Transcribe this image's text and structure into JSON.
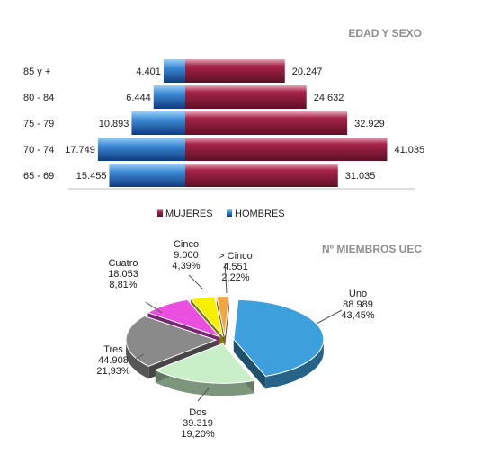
{
  "chart_data": [
    {
      "type": "bar",
      "subtype": "population-pyramid",
      "title": "EDAD Y SEXO",
      "categories": [
        "85 y +",
        "80 - 84",
        "75 - 79",
        "70 - 74",
        "65 - 69"
      ],
      "series": [
        {
          "name": "MUJERES",
          "values": [
            20247,
            24632,
            32929,
            41035,
            31035
          ],
          "labels": [
            "20.247",
            "24.632",
            "32.929",
            "41.035",
            "31.035"
          ],
          "color": "#8b1a3a"
        },
        {
          "name": "HOMBRES",
          "values": [
            4401,
            6444,
            10893,
            17749,
            15455
          ],
          "labels": [
            "4.401",
            "6.444",
            "10.893",
            "17.749",
            "15.455"
          ],
          "color": "#1f5fae"
        }
      ],
      "legend_position": "bottom"
    },
    {
      "type": "pie",
      "title": "Nº MIEMBROS UEC",
      "slices": [
        {
          "label": "Uno",
          "value": 88989,
          "value_text": "88.989",
          "percent": "43,45%",
          "color": "#3d9fdc"
        },
        {
          "label": "Dos",
          "value": 39319,
          "value_text": "39.319",
          "percent": "19,20%",
          "color": "#c9efc9"
        },
        {
          "label": "Tres",
          "value": 44908,
          "value_text": "44.908",
          "percent": "21,93%",
          "color": "#8a8a8a"
        },
        {
          "label": "Cuatro",
          "value": 18053,
          "value_text": "18.053",
          "percent": "8,81%",
          "color": "#ea4fe0"
        },
        {
          "label": "Cinco",
          "value": 9000,
          "value_text": "9.000",
          "percent": "4,39%",
          "color": "#f6f000"
        },
        {
          "label": "> Cinco",
          "value": 4551,
          "value_text": "4.551",
          "percent": "2,22%",
          "color": "#f2a640"
        }
      ],
      "style": "3d-exploded"
    }
  ]
}
